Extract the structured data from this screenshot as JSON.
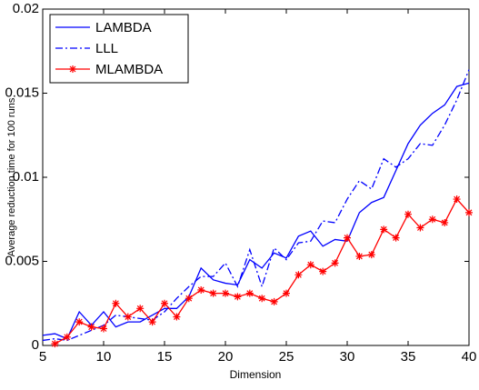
{
  "chart_data": {
    "type": "line",
    "xlabel": "Dimension",
    "ylabel": "Average reduction time for 100 runs",
    "x": [
      5,
      6,
      7,
      8,
      9,
      10,
      11,
      12,
      13,
      14,
      15,
      16,
      17,
      18,
      19,
      20,
      21,
      22,
      23,
      24,
      25,
      26,
      27,
      28,
      29,
      30,
      31,
      32,
      33,
      34,
      35,
      36,
      37,
      38,
      39,
      40
    ],
    "series": [
      {
        "name": "LAMBDA",
        "color": "#0000ff",
        "linestyle": "solid",
        "values": [
          0.0006,
          0.0007,
          0.0004,
          0.002,
          0.0012,
          0.002,
          0.0011,
          0.0014,
          0.0014,
          0.0018,
          0.0022,
          0.0022,
          0.0029,
          0.0046,
          0.0039,
          0.0037,
          0.0036,
          0.0051,
          0.0046,
          0.0055,
          0.0052,
          0.0065,
          0.0068,
          0.0059,
          0.0063,
          0.0062,
          0.0079,
          0.0085,
          0.0088,
          0.0104,
          0.012,
          0.0131,
          0.0138,
          0.0143,
          0.0154,
          0.0156
        ]
      },
      {
        "name": "LLL",
        "color": "#0000ff",
        "linestyle": "dashdot",
        "values": [
          0.0003,
          0.0004,
          0.0003,
          0.0006,
          0.0009,
          0.0012,
          0.0018,
          0.0017,
          0.0016,
          0.0015,
          0.002,
          0.0028,
          0.0035,
          0.0041,
          0.0041,
          0.0049,
          0.0035,
          0.0057,
          0.0035,
          0.0058,
          0.0051,
          0.0061,
          0.0062,
          0.0074,
          0.0073,
          0.0087,
          0.0098,
          0.0093,
          0.0111,
          0.0106,
          0.0111,
          0.012,
          0.0119,
          0.0131,
          0.0146,
          0.0164
        ]
      },
      {
        "name": "MLAMBDA",
        "color": "#ff0000",
        "linestyle": "solid",
        "marker": "asterisk",
        "values": [
          null,
          0.0001,
          0.0005,
          0.0014,
          0.0011,
          0.001,
          0.0025,
          0.0017,
          0.0022,
          0.0014,
          0.0025,
          0.0017,
          0.0028,
          0.0033,
          0.0031,
          0.0031,
          0.0029,
          0.0031,
          0.0028,
          0.0026,
          0.0031,
          0.0042,
          0.0048,
          0.0044,
          0.0049,
          0.0064,
          0.0053,
          0.0054,
          0.0069,
          0.0064,
          0.0078,
          0.007,
          0.0075,
          0.0073,
          0.0087,
          0.0079
        ]
      }
    ],
    "xlim": [
      5,
      40
    ],
    "xticks": [
      5,
      10,
      15,
      20,
      25,
      30,
      35,
      40
    ],
    "ylim": [
      0,
      0.02
    ],
    "yticks": [
      0,
      0.005,
      0.01,
      0.015,
      0.02
    ],
    "grid": false,
    "legend": "upper-left"
  }
}
